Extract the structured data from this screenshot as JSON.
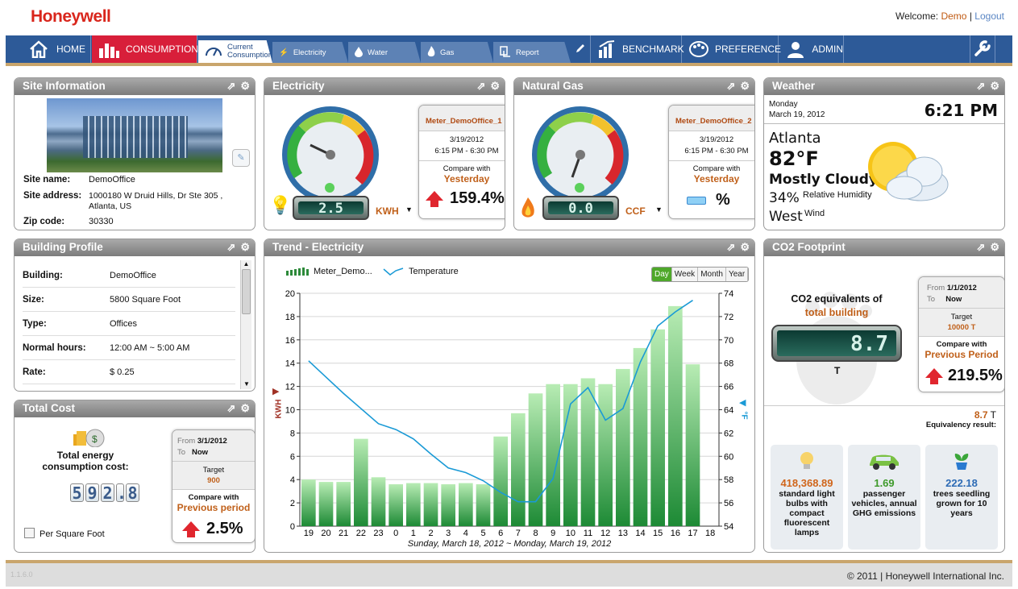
{
  "header": {
    "logo": "Honeywell",
    "welcome": "Welcome:",
    "user": "Demo",
    "sep": "|",
    "logout": "Logout"
  },
  "nav": {
    "home": "HOME",
    "consumption": "CONSUMPTION",
    "benchmark": "BENCHMARK",
    "preference": "PREFERENCE",
    "admin": "ADMIN",
    "sub": {
      "current1": "Current",
      "current2": "Consumption",
      "electricity": "Electricity",
      "water": "Water",
      "gas": "Gas",
      "report": "Report"
    }
  },
  "site": {
    "title": "Site Information",
    "name_label": "Site name:",
    "name": "DemoOffice",
    "address_label": "Site address:",
    "address1": "1000180 W Druid Hills, Dr Ste 305 ,",
    "address2": "Atlanta, US",
    "zip_label": "Zip code:",
    "zip": "30330"
  },
  "electricity": {
    "title": "Electricity",
    "reading": "2.5",
    "unit": "KWH",
    "meter": "Meter_DemoOffice_1",
    "date": "3/19/2012",
    "time": "6:15 PM - 6:30 PM",
    "compare_label": "Compare with",
    "compare": "Yesterday",
    "pct": "159.4%"
  },
  "gas": {
    "title": "Natural Gas",
    "reading": "0.0",
    "unit": "CCF",
    "meter": "Meter_DemoOffice_2",
    "date": "3/19/2012",
    "time": "6:15 PM - 6:30 PM",
    "compare_label": "Compare with",
    "compare": "Yesterday",
    "pct": "%"
  },
  "weather": {
    "title": "Weather",
    "day": "Monday",
    "date": "March 19, 2012",
    "time": "6:21 PM",
    "city": "Atlanta",
    "temp": "82°F",
    "cond": "Mostly Cloudy",
    "humidity": "34%",
    "humidity_label": "Relative Humidity",
    "wind": "West",
    "wind_label": "Wind"
  },
  "building": {
    "title": "Building Profile",
    "rows": [
      {
        "k": "Building:",
        "v": "DemoOffice"
      },
      {
        "k": "Size:",
        "v": "5800  Square Foot"
      },
      {
        "k": "Type:",
        "v": "Offices"
      },
      {
        "k": "Normal hours:",
        "v": "12:00 AM  ~  5:00 AM"
      },
      {
        "k": "Rate:",
        "v": "$ 0.25"
      }
    ]
  },
  "cost": {
    "title": "Total Cost",
    "label1": "Total energy",
    "label2": "consumption cost:",
    "digits": [
      "5",
      "9",
      "2",
      ".",
      "8"
    ],
    "per_sqft": "Per Square Foot",
    "from_label": "From",
    "from": "3/1/2012",
    "to_label": "To",
    "to": "Now",
    "target_label": "Target",
    "target": "900",
    "compare_label": "Compare with",
    "compare": "Previous period",
    "pct": "2.5%"
  },
  "trend": {
    "title": "Trend - Electricity",
    "legend_meter": "Meter_Demo...",
    "legend_temp": "Temperature",
    "toggles": [
      "Day",
      "Week",
      "Month",
      "Year"
    ],
    "ylabel_left": "KWH",
    "ylabel_right": "°F",
    "xcaption": "Sunday, March 18, 2012 ~ Monday, March 19, 2012"
  },
  "chart_data": {
    "type": "bar",
    "categories": [
      "19",
      "20",
      "21",
      "22",
      "23",
      "0",
      "1",
      "2",
      "3",
      "4",
      "5",
      "6",
      "7",
      "8",
      "9",
      "10",
      "11",
      "12",
      "13",
      "14",
      "15",
      "16",
      "17",
      "18"
    ],
    "series": [
      {
        "name": "Meter_Demo...",
        "type": "bar",
        "axis": "left",
        "values": [
          4.0,
          3.8,
          3.8,
          7.5,
          4.2,
          3.6,
          3.7,
          3.7,
          3.6,
          3.7,
          3.6,
          7.7,
          9.7,
          11.4,
          12.2,
          12.2,
          12.7,
          12.2,
          13.5,
          15.3,
          16.9,
          18.9,
          13.9,
          null
        ]
      },
      {
        "name": "Temperature",
        "type": "line",
        "axis": "right",
        "values": [
          68.2,
          66.8,
          65.4,
          64.1,
          62.8,
          62.3,
          61.5,
          60.2,
          59.0,
          58.6,
          57.9,
          56.9,
          56.1,
          56.1,
          58.1,
          64.5,
          65.9,
          63.1,
          64.1,
          68.1,
          71.2,
          72.4,
          73.4,
          null
        ]
      }
    ],
    "ylim_left": [
      0,
      20
    ],
    "yticks_left": [
      0,
      2,
      4,
      6,
      8,
      10,
      12,
      14,
      16,
      18,
      20
    ],
    "ylim_right": [
      54,
      74
    ],
    "yticks_right": [
      54,
      56,
      58,
      60,
      62,
      64,
      66,
      68,
      70,
      72,
      74
    ],
    "grid": true
  },
  "co2": {
    "title": "CO2 Footprint",
    "label1": "CO2 equivalents of",
    "label2": "total building",
    "reading": "8.7",
    "unit": "T",
    "from_label": "From",
    "from": "1/1/2012",
    "to_label": "To",
    "to": "Now",
    "target_label": "Target",
    "target": "10000 T",
    "compare_label": "Compare with",
    "compare": "Previous Period",
    "pct": "219.5%",
    "result_value": "8.7",
    "result_unit": "T",
    "result_label": "Equivalency result:",
    "eq": [
      {
        "n": "418,368.89",
        "t": "standard light bulbs with compact fluorescent lamps",
        "color": "#d0651a"
      },
      {
        "n": "1.69",
        "t": "passenger vehicles, annual GHG emissions",
        "color": "#3e9a2a"
      },
      {
        "n": "222.18",
        "t": "trees seedling grown for 10 years",
        "color": "#2d6bb5"
      }
    ]
  },
  "footer": {
    "version": "1.1.6.0",
    "copyright": "© 2011 | Honeywell International Inc."
  },
  "colors": {
    "nav": "#2d5a98",
    "active": "#d81f3a",
    "accent": "#c9a56c"
  }
}
